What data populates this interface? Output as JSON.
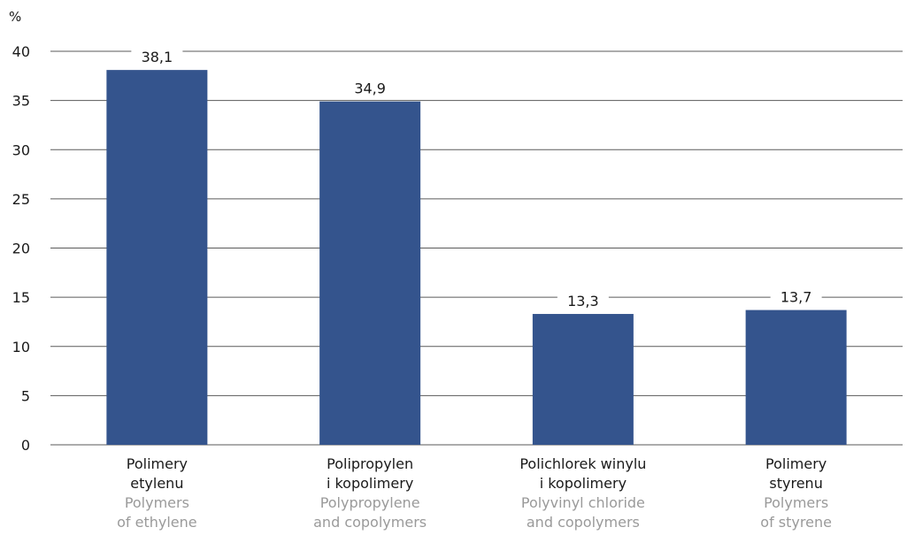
{
  "chart_data": {
    "type": "bar",
    "ylabel": "%",
    "ylim": [
      0,
      40
    ],
    "yticks": [
      "0",
      "5",
      "10",
      "15",
      "20",
      "25",
      "30",
      "35",
      "40"
    ],
    "grid": true,
    "bar_color": "#34548d",
    "categories": [
      {
        "pl": [
          "Polimery",
          "etylenu"
        ],
        "en": [
          "Polymers",
          "of ethylene"
        ]
      },
      {
        "pl": [
          "Polipropylen",
          "i kopolimery"
        ],
        "en": [
          "Polypropylene",
          "and copolymers"
        ]
      },
      {
        "pl": [
          "Polichlorek winylu",
          "i kopolimery"
        ],
        "en": [
          "Polyvinyl chloride",
          "and copolymers"
        ]
      },
      {
        "pl": [
          "Polimery",
          "styrenu"
        ],
        "en": [
          "Polymers",
          "of styrene"
        ]
      }
    ],
    "values": [
      38.1,
      34.9,
      13.3,
      13.7
    ],
    "value_labels": [
      "38,1",
      "34,9",
      "13,3",
      "13,7"
    ]
  }
}
